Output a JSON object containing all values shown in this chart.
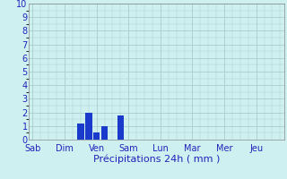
{
  "bar_positions": [
    1,
    2,
    6,
    7,
    8,
    9,
    11,
    12,
    13,
    22,
    23,
    27,
    28
  ],
  "bar_values": [
    0,
    0,
    1.2,
    2.0,
    0.55,
    1.0,
    1.8,
    0,
    0,
    0,
    0,
    0,
    0
  ],
  "n_slots": 32,
  "bar_color": "#1a3acc",
  "background_color": "#cef0f0",
  "grid_color": "#aacece",
  "tick_color": "#2222bb",
  "xlabel": "Précipitations 24h ( mm )",
  "xlabel_fontsize": 8,
  "day_tick_positions": [
    0,
    4,
    8,
    12,
    16,
    20,
    24,
    28
  ],
  "day_tick_labels": [
    "Sab",
    "Dim",
    "Ven",
    "Sam",
    "Lun",
    "Mar",
    "Mer",
    "Jeu"
  ],
  "ylim": [
    0,
    10
  ],
  "yticks": [
    0,
    1,
    2,
    3,
    4,
    5,
    6,
    7,
    8,
    9,
    10
  ]
}
